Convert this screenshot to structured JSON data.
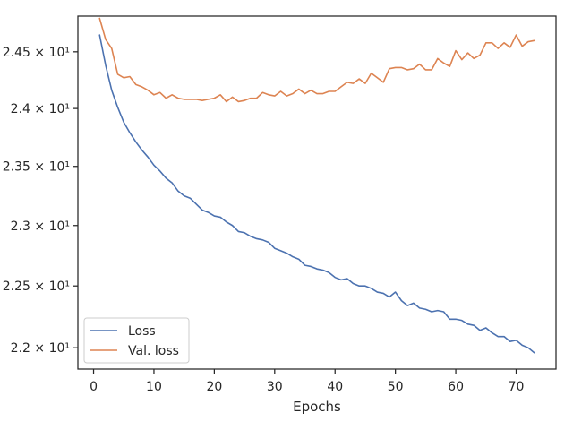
{
  "chart_data": {
    "type": "line",
    "title": "",
    "xlabel": "Epochs",
    "ylabel": "",
    "y_scale": "log",
    "xlim": [
      -2.6,
      76.6
    ],
    "ylim": [
      21.83,
      24.82
    ],
    "grid": false,
    "legend_position": "lower-left",
    "x_ticks": [
      0,
      10,
      20,
      30,
      40,
      50,
      60,
      70
    ],
    "x_tick_labels": [
      "0",
      "10",
      "20",
      "30",
      "40",
      "50",
      "60",
      "70"
    ],
    "y_ticks": [
      22.0,
      22.5,
      23.0,
      23.5,
      24.0,
      24.5
    ],
    "y_tick_labels": [
      "2.2 × 10¹",
      "2.25 × 10¹",
      "2.3 × 10¹",
      "2.35 × 10¹",
      "2.4 × 10¹",
      "2.45 × 10¹"
    ],
    "x": [
      1,
      2,
      3,
      4,
      5,
      6,
      7,
      8,
      9,
      10,
      11,
      12,
      13,
      14,
      15,
      16,
      17,
      18,
      19,
      20,
      21,
      22,
      23,
      24,
      25,
      26,
      27,
      28,
      29,
      30,
      31,
      32,
      33,
      34,
      35,
      36,
      37,
      38,
      39,
      40,
      41,
      42,
      43,
      44,
      45,
      46,
      47,
      48,
      49,
      50,
      51,
      52,
      53,
      54,
      55,
      56,
      57,
      58,
      59,
      60,
      61,
      62,
      63,
      64,
      65,
      66,
      67,
      68,
      69,
      70,
      71,
      72,
      73
    ],
    "series": [
      {
        "name": "Loss",
        "color": "#4c72b0",
        "values": [
          24.65,
          24.38,
          24.16,
          24.01,
          23.88,
          23.79,
          23.71,
          23.64,
          23.58,
          23.51,
          23.46,
          23.4,
          23.36,
          23.29,
          23.25,
          23.23,
          23.18,
          23.13,
          23.11,
          23.08,
          23.07,
          23.03,
          23.0,
          22.95,
          22.94,
          22.91,
          22.89,
          22.88,
          22.86,
          22.81,
          22.79,
          22.77,
          22.74,
          22.72,
          22.67,
          22.66,
          22.64,
          22.63,
          22.61,
          22.57,
          22.55,
          22.56,
          22.52,
          22.5,
          22.5,
          22.48,
          22.45,
          22.44,
          22.41,
          22.45,
          22.38,
          22.34,
          22.36,
          22.32,
          22.31,
          22.29,
          22.3,
          22.29,
          22.23,
          22.23,
          22.22,
          22.19,
          22.18,
          22.14,
          22.16,
          22.12,
          22.09,
          22.09,
          22.05,
          22.06,
          22.02,
          22.0,
          21.96
        ]
      },
      {
        "name": "Val. loss",
        "color": "#dd8452",
        "values": [
          24.8,
          24.61,
          24.53,
          24.3,
          24.27,
          24.28,
          24.21,
          24.19,
          24.16,
          24.12,
          24.14,
          24.09,
          24.12,
          24.09,
          24.08,
          24.08,
          24.08,
          24.07,
          24.08,
          24.09,
          24.12,
          24.06,
          24.1,
          24.06,
          24.07,
          24.09,
          24.09,
          24.14,
          24.12,
          24.11,
          24.15,
          24.11,
          24.13,
          24.17,
          24.13,
          24.16,
          24.13,
          24.13,
          24.15,
          24.15,
          24.19,
          24.23,
          24.22,
          24.26,
          24.22,
          24.31,
          24.27,
          24.23,
          24.35,
          24.36,
          24.36,
          24.34,
          24.35,
          24.39,
          24.34,
          24.34,
          24.44,
          24.4,
          24.37,
          24.51,
          24.43,
          24.49,
          24.44,
          24.47,
          24.58,
          24.58,
          24.53,
          24.58,
          24.54,
          24.65,
          24.55,
          24.59,
          24.6
        ]
      }
    ]
  }
}
